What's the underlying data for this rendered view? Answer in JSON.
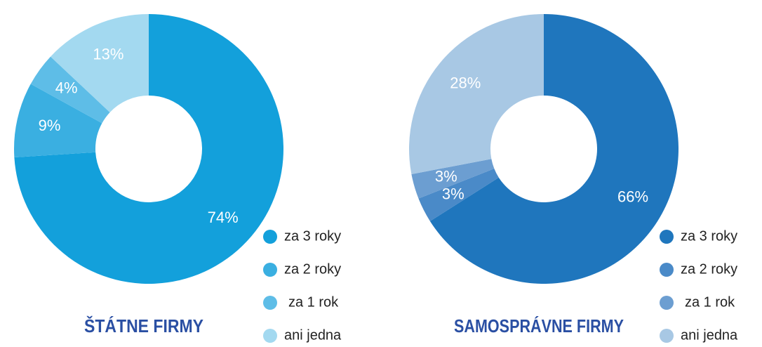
{
  "chart_data": [
    {
      "type": "pie",
      "title": "ŠTÁTNE FIRMY",
      "categories": [
        "za 3 roky",
        "za 2 roky",
        "za 1 rok",
        "ani jedna"
      ],
      "values": [
        74,
        9,
        4,
        13
      ],
      "value_labels": [
        "74%",
        "9%",
        "4%",
        "13%"
      ],
      "colors": [
        "#13a0db",
        "#3aafe1",
        "#5ebde7",
        "#a3d9f0"
      ]
    },
    {
      "type": "pie",
      "title": "SAMOSPRÁVNE FIRMY",
      "categories": [
        "za 3 roky",
        "za 2 roky",
        "za 1 rok",
        "ani jedna"
      ],
      "values": [
        66,
        3,
        3,
        28
      ],
      "value_labels": [
        "66%",
        "3%",
        "3%",
        "28%"
      ],
      "colors": [
        "#1f76bd",
        "#4a8ac8",
        "#6c9ed1",
        "#a8c8e4"
      ]
    }
  ]
}
